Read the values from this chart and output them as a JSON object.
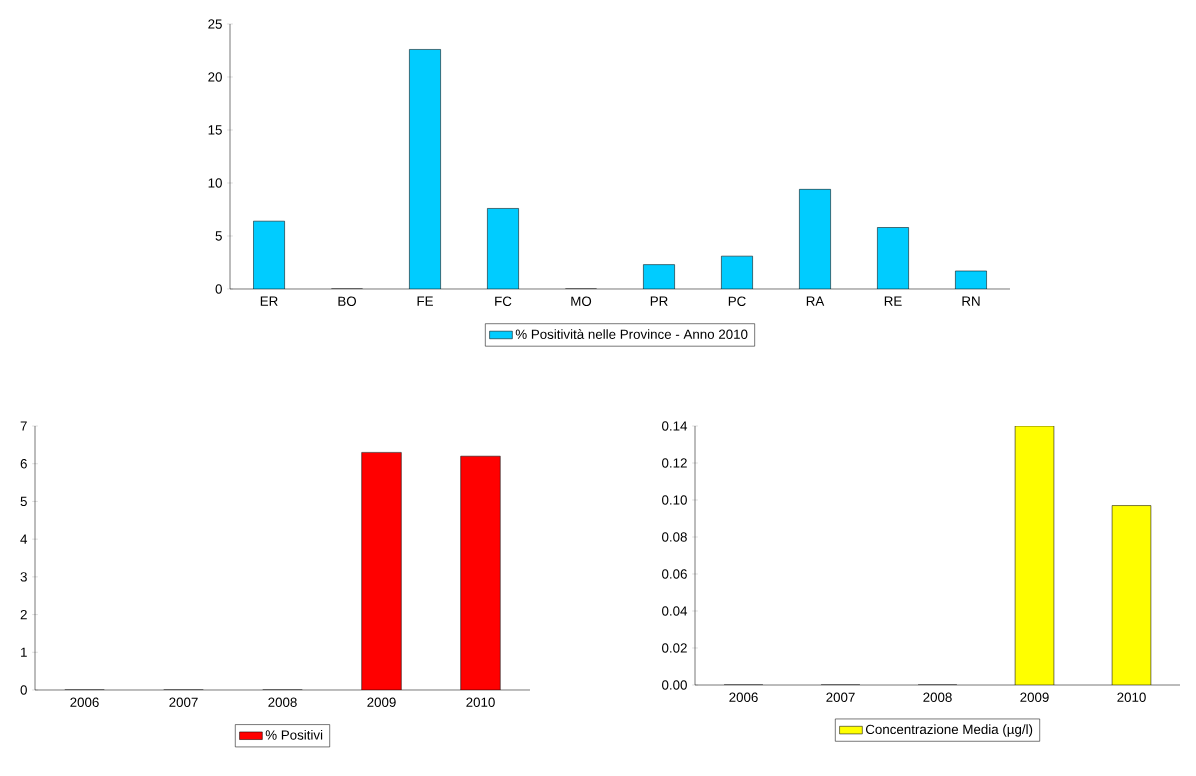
{
  "chart_data": [
    {
      "type": "bar",
      "categories": [
        "ER",
        "BO",
        "FE",
        "FC",
        "MO",
        "PR",
        "PC",
        "RA",
        "RE",
        "RN"
      ],
      "series": [
        {
          "name": "% Positività nelle Province - Anno 2010",
          "color": "#00ccff",
          "values": [
            6.4,
            0,
            22.6,
            7.6,
            0,
            2.3,
            3.1,
            9.4,
            5.8,
            1.7
          ]
        }
      ],
      "ylim": [
        0,
        25
      ],
      "yticks": [
        0,
        5,
        10,
        15,
        20,
        25
      ],
      "legend": "bottom"
    },
    {
      "type": "bar",
      "categories": [
        "2006",
        "2007",
        "2008",
        "2009",
        "2010"
      ],
      "series": [
        {
          "name": "% Positivi",
          "color": "#ff0000",
          "values": [
            0,
            0,
            0,
            6.3,
            6.2
          ]
        }
      ],
      "ylim": [
        0,
        7
      ],
      "yticks": [
        0,
        1,
        2,
        3,
        4,
        5,
        6,
        7
      ],
      "legend": "bottom"
    },
    {
      "type": "bar",
      "categories": [
        "2006",
        "2007",
        "2008",
        "2009",
        "2010"
      ],
      "series": [
        {
          "name": "Concentrazione Media (µg/l)",
          "color": "#ffff00",
          "values": [
            0,
            0,
            0,
            0.14,
            0.097
          ]
        }
      ],
      "ylim": [
        0,
        0.14
      ],
      "yticks": [
        {
          "value": 0,
          "label": "0.00"
        },
        {
          "value": 0.02,
          "label": "0.02"
        },
        {
          "value": 0.04,
          "label": "0.04"
        },
        {
          "value": 0.06,
          "label": "0.06"
        },
        {
          "value": 0.08,
          "label": "0.08"
        },
        {
          "value": 0.1,
          "label": "0.10"
        },
        {
          "value": 0.12,
          "label": "0.12"
        },
        {
          "value": 0.14,
          "label": "0.14"
        }
      ],
      "legend": "bottom"
    }
  ]
}
